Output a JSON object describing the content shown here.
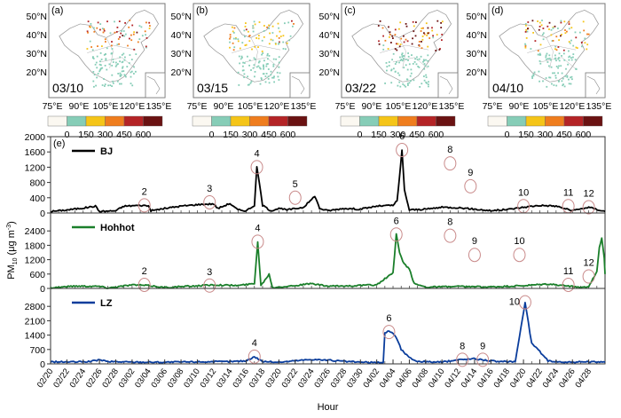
{
  "figure": {
    "map_panels": [
      {
        "label": "(a)",
        "date": "03/10"
      },
      {
        "label": "(b)",
        "date": "03/15"
      },
      {
        "label": "(c)",
        "date": "03/22"
      },
      {
        "label": "(d)",
        "date": "04/10"
      }
    ],
    "map_lat_ticks": [
      "50°N",
      "40°N",
      "30°N",
      "20°N"
    ],
    "map_lon_ticks": [
      "75°E",
      "90°E",
      "105°E",
      "120°E",
      "135°E"
    ],
    "colorbar": {
      "tick_labels": [
        "0",
        "150",
        "300",
        "450",
        "600"
      ],
      "colors": [
        "#fbf8f1",
        "#86cdb7",
        "#f5c518",
        "#ef7d1e",
        "#b42426",
        "#6a1212"
      ]
    },
    "panel_e_label": "(e)"
  },
  "chart_data": {
    "type": "line",
    "title": "",
    "xlabel": "Hour",
    "ylabel": "PM10 (μg m-3)",
    "ylabel_main": "PM",
    "ylabel_sub": "10",
    "ylabel_unit": " (μg m",
    "ylabel_sup": "-3",
    "ylabel_close": ")",
    "x_tick_labels": [
      "02/20",
      "02/22",
      "02/24",
      "02/26",
      "02/28",
      "03/02",
      "03/04",
      "03/06",
      "03/08",
      "03/10",
      "03/12",
      "03/14",
      "03/16",
      "03/18",
      "03/20",
      "03/22",
      "03/24",
      "03/26",
      "03/28",
      "03/30",
      "04/02",
      "04/04",
      "04/06",
      "04/08",
      "04/10",
      "04/12",
      "04/14",
      "04/16",
      "04/18",
      "04/20",
      "04/22",
      "04/24",
      "04/26",
      "04/28"
    ],
    "x_range_days": [
      0,
      68
    ],
    "series": [
      {
        "name": "BJ",
        "color": "#000000",
        "ylim": [
          0,
          2000
        ],
        "yticks": [
          0,
          400,
          800,
          1200,
          1600,
          2000
        ],
        "points": [
          [
            0,
            40
          ],
          [
            2,
            80
          ],
          [
            4,
            130
          ],
          [
            5.5,
            180
          ],
          [
            6,
            40
          ],
          [
            8,
            60
          ],
          [
            9,
            180
          ],
          [
            11,
            200
          ],
          [
            12,
            190
          ],
          [
            12.3,
            60
          ],
          [
            14,
            120
          ],
          [
            16,
            180
          ],
          [
            18,
            220
          ],
          [
            20,
            240
          ],
          [
            20.5,
            120
          ],
          [
            22,
            250
          ],
          [
            22.6,
            140
          ],
          [
            23,
            80
          ],
          [
            24,
            60
          ],
          [
            25,
            200
          ],
          [
            25.3,
            1200
          ],
          [
            25.6,
            800
          ],
          [
            26,
            200
          ],
          [
            27,
            60
          ],
          [
            28,
            120
          ],
          [
            29,
            80
          ],
          [
            31,
            150
          ],
          [
            32,
            350
          ],
          [
            32.4,
            450
          ],
          [
            33,
            120
          ],
          [
            34,
            60
          ],
          [
            36,
            120
          ],
          [
            38,
            100
          ],
          [
            40,
            180
          ],
          [
            42,
            200
          ],
          [
            42.5,
            320
          ],
          [
            42.8,
            950
          ],
          [
            43.1,
            1650
          ],
          [
            43.4,
            600
          ],
          [
            44,
            80
          ],
          [
            46,
            100
          ],
          [
            48,
            150
          ],
          [
            50,
            140
          ],
          [
            52,
            100
          ],
          [
            54,
            60
          ],
          [
            56,
            90
          ],
          [
            58,
            150
          ],
          [
            60,
            200
          ],
          [
            62,
            180
          ],
          [
            64,
            60
          ],
          [
            66,
            150
          ],
          [
            68,
            40
          ]
        ],
        "events": [
          {
            "id": "2",
            "x": 11.5,
            "y": 200
          },
          {
            "id": "3",
            "x": 19.5,
            "y": 280
          },
          {
            "id": "4",
            "x": 25.3,
            "y": 1200
          },
          {
            "id": "5",
            "x": 30,
            "y": 400
          },
          {
            "id": "6",
            "x": 43.1,
            "y": 1650
          },
          {
            "id": "8",
            "x": 49,
            "y": 1300
          },
          {
            "id": "9",
            "x": 51.5,
            "y": 700
          },
          {
            "id": "10",
            "x": 58,
            "y": 180
          },
          {
            "id": "11",
            "x": 63.5,
            "y": 180
          },
          {
            "id": "12",
            "x": 66,
            "y": 150
          }
        ]
      },
      {
        "name": "Hohhot",
        "color": "#1a7f2a",
        "ylim": [
          0,
          3000
        ],
        "yticks": [
          0,
          600,
          1200,
          1800,
          2400
        ],
        "points": [
          [
            0,
            30
          ],
          [
            3,
            100
          ],
          [
            6,
            90
          ],
          [
            7,
            20
          ],
          [
            10,
            150
          ],
          [
            12,
            120
          ],
          [
            14,
            40
          ],
          [
            17,
            90
          ],
          [
            20,
            150
          ],
          [
            23,
            120
          ],
          [
            25,
            200
          ],
          [
            25.4,
            1950
          ],
          [
            25.8,
            120
          ],
          [
            26.8,
            600
          ],
          [
            27.2,
            40
          ],
          [
            30,
            120
          ],
          [
            32,
            200
          ],
          [
            34,
            90
          ],
          [
            37,
            110
          ],
          [
            40,
            150
          ],
          [
            42,
            650
          ],
          [
            42.4,
            2250
          ],
          [
            42.8,
            1500
          ],
          [
            43.2,
            1100
          ],
          [
            44,
            800
          ],
          [
            44.6,
            200
          ],
          [
            46,
            60
          ],
          [
            50,
            80
          ],
          [
            54,
            60
          ],
          [
            58,
            110
          ],
          [
            61,
            180
          ],
          [
            63,
            120
          ],
          [
            65,
            40
          ],
          [
            66,
            90
          ],
          [
            67,
            700
          ],
          [
            67.3,
            1700
          ],
          [
            67.6,
            2100
          ],
          [
            67.9,
            1300
          ],
          [
            68,
            600
          ]
        ],
        "events": [
          {
            "id": "2",
            "x": 11.5,
            "y": 150
          },
          {
            "id": "3",
            "x": 19.5,
            "y": 120
          },
          {
            "id": "4",
            "x": 25.4,
            "y": 1950
          },
          {
            "id": "6",
            "x": 42.4,
            "y": 2250
          },
          {
            "id": "8",
            "x": 49,
            "y": 2200
          },
          {
            "id": "9",
            "x": 52,
            "y": 1400
          },
          {
            "id": "10",
            "x": 57.5,
            "y": 1400
          },
          {
            "id": "11",
            "x": 63.5,
            "y": 150
          },
          {
            "id": "12",
            "x": 66,
            "y": 500
          }
        ]
      },
      {
        "name": "LZ",
        "color": "#0a3d9c",
        "ylim": [
          0,
          3500
        ],
        "yticks": [
          0,
          700,
          1400,
          2100,
          2800
        ],
        "points": [
          [
            0,
            100
          ],
          [
            3,
            90
          ],
          [
            5,
            120
          ],
          [
            6,
            200
          ],
          [
            7,
            110
          ],
          [
            10,
            90
          ],
          [
            14,
            80
          ],
          [
            18,
            100
          ],
          [
            22,
            110
          ],
          [
            24,
            150
          ],
          [
            25,
            350
          ],
          [
            26,
            120
          ],
          [
            28,
            80
          ],
          [
            30,
            150
          ],
          [
            32,
            220
          ],
          [
            34,
            180
          ],
          [
            36,
            120
          ],
          [
            38,
            80
          ],
          [
            40,
            60
          ],
          [
            40.8,
            80
          ],
          [
            41,
            1500
          ],
          [
            41.5,
            1600
          ],
          [
            42,
            1500
          ],
          [
            42.5,
            1200
          ],
          [
            43,
            700
          ],
          [
            44,
            300
          ],
          [
            45,
            120
          ],
          [
            48,
            80
          ],
          [
            50,
            200
          ],
          [
            52,
            250
          ],
          [
            54,
            150
          ],
          [
            55,
            100
          ],
          [
            57,
            120
          ],
          [
            58.2,
            3000
          ],
          [
            58.6,
            2000
          ],
          [
            59,
            1000
          ],
          [
            60,
            600
          ],
          [
            61,
            150
          ],
          [
            63,
            80
          ],
          [
            66,
            100
          ],
          [
            68,
            80
          ]
        ],
        "events": [
          {
            "id": "4",
            "x": 25,
            "y": 350
          },
          {
            "id": "6",
            "x": 41.5,
            "y": 1550
          },
          {
            "id": "8",
            "x": 50.5,
            "y": 200
          },
          {
            "id": "9",
            "x": 53,
            "y": 200
          },
          {
            "id": "10",
            "x": 58.2,
            "y": 3000
          }
        ]
      }
    ]
  }
}
